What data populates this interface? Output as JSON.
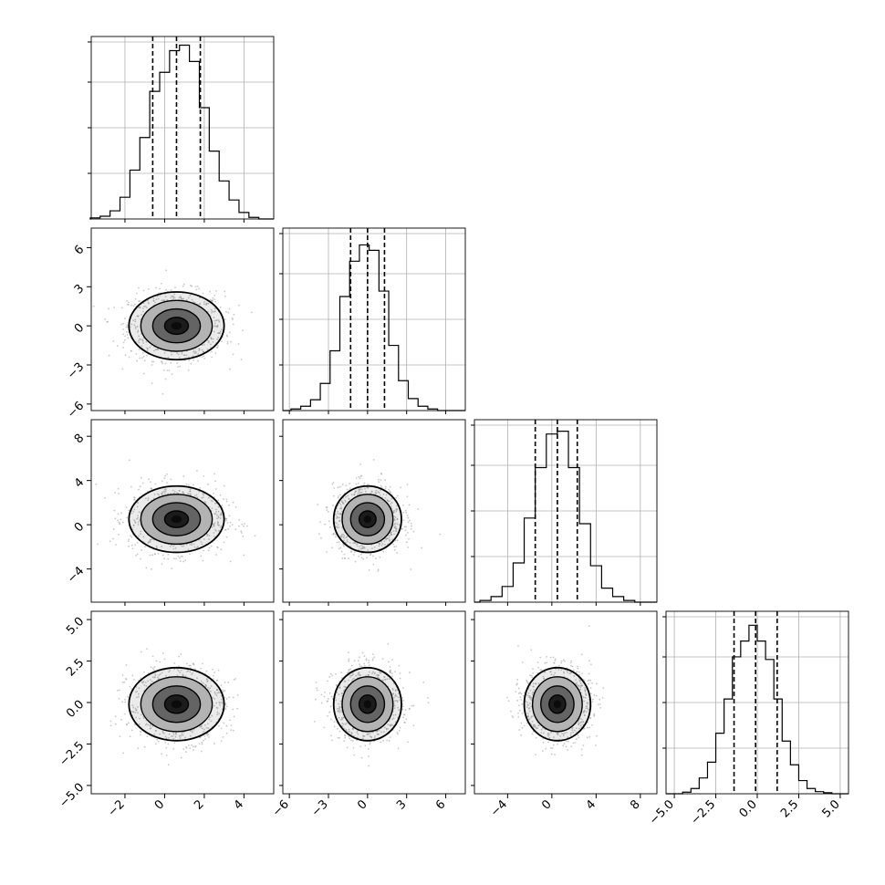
{
  "chart_data": {
    "type": "corner",
    "n_params": 4,
    "grid": true,
    "colors": {
      "line": "#000000",
      "grid": "#b0b0b0",
      "scatter_points": "#9a9a9a",
      "density_fill": "#000000"
    },
    "params": [
      {
        "range": [
          -3.7,
          5.5
        ],
        "ticks": [
          -2,
          0,
          2,
          4
        ],
        "tick_labels": [
          "−2",
          "0",
          "2",
          "4"
        ],
        "quantiles": [
          -0.6,
          0.6,
          1.8
        ],
        "hist_max_count": 320,
        "hist_bins": [
          {
            "x": -3.5,
            "count": 2
          },
          {
            "x": -3.0,
            "count": 5
          },
          {
            "x": -2.5,
            "count": 15
          },
          {
            "x": -2.0,
            "count": 40
          },
          {
            "x": -1.5,
            "count": 90
          },
          {
            "x": -1.0,
            "count": 150
          },
          {
            "x": -0.5,
            "count": 235
          },
          {
            "x": 0.0,
            "count": 270
          },
          {
            "x": 0.5,
            "count": 310
          },
          {
            "x": 1.0,
            "count": 320
          },
          {
            "x": 1.5,
            "count": 290
          },
          {
            "x": 2.0,
            "count": 205
          },
          {
            "x": 2.5,
            "count": 125
          },
          {
            "x": 3.0,
            "count": 70
          },
          {
            "x": 3.5,
            "count": 35
          },
          {
            "x": 4.0,
            "count": 12
          },
          {
            "x": 4.5,
            "count": 3
          }
        ]
      },
      {
        "range": [
          -6.5,
          7.5
        ],
        "ticks": [
          -6,
          -3,
          0,
          3,
          6
        ],
        "tick_labels": [
          "−6",
          "−3",
          "0",
          "3",
          "6"
        ],
        "quantiles": [
          -1.3,
          0.0,
          1.3
        ],
        "hist_max_count": 320,
        "hist_bins": [
          {
            "x": -5.5,
            "count": 3
          },
          {
            "x": -4.75,
            "count": 8
          },
          {
            "x": -4.0,
            "count": 20
          },
          {
            "x": -3.25,
            "count": 50
          },
          {
            "x": -2.5,
            "count": 110
          },
          {
            "x": -1.75,
            "count": 210
          },
          {
            "x": -1.0,
            "count": 275
          },
          {
            "x": -0.25,
            "count": 305
          },
          {
            "x": 0.5,
            "count": 295
          },
          {
            "x": 1.25,
            "count": 220
          },
          {
            "x": 2.0,
            "count": 120
          },
          {
            "x": 2.75,
            "count": 55
          },
          {
            "x": 3.5,
            "count": 22
          },
          {
            "x": 4.25,
            "count": 8
          },
          {
            "x": 5.0,
            "count": 3
          }
        ]
      },
      {
        "range": [
          -7.0,
          9.5
        ],
        "ticks": [
          -4,
          0,
          4,
          8
        ],
        "tick_labels": [
          "−4",
          "0",
          "4",
          "8"
        ],
        "quantiles": [
          -1.5,
          0.5,
          2.3
        ],
        "hist_max_count": 310,
        "hist_bins": [
          {
            "x": -6.0,
            "count": 3
          },
          {
            "x": -5.0,
            "count": 10
          },
          {
            "x": -4.0,
            "count": 28
          },
          {
            "x": -3.0,
            "count": 70
          },
          {
            "x": -2.0,
            "count": 150
          },
          {
            "x": -1.0,
            "count": 240
          },
          {
            "x": 0.0,
            "count": 300
          },
          {
            "x": 1.0,
            "count": 305
          },
          {
            "x": 2.0,
            "count": 240
          },
          {
            "x": 3.0,
            "count": 140
          },
          {
            "x": 4.0,
            "count": 65
          },
          {
            "x": 5.0,
            "count": 25
          },
          {
            "x": 6.0,
            "count": 10
          },
          {
            "x": 7.0,
            "count": 3
          }
        ]
      },
      {
        "range": [
          -5.5,
          5.5
        ],
        "ticks": [
          -5.0,
          -2.5,
          0.0,
          2.5,
          5.0
        ],
        "tick_labels": [
          "−5.0",
          "−2.5",
          "0.0",
          "2.5",
          "5.0"
        ],
        "quantiles": [
          -1.4,
          -0.1,
          1.2
        ],
        "hist_max_count": 330,
        "hist_bins": [
          {
            "x": -4.25,
            "count": 3
          },
          {
            "x": -3.75,
            "count": 10
          },
          {
            "x": -3.25,
            "count": 30
          },
          {
            "x": -2.75,
            "count": 60
          },
          {
            "x": -2.25,
            "count": 115
          },
          {
            "x": -1.75,
            "count": 180
          },
          {
            "x": -1.25,
            "count": 260
          },
          {
            "x": -0.75,
            "count": 290
          },
          {
            "x": -0.25,
            "count": 320
          },
          {
            "x": 0.25,
            "count": 290
          },
          {
            "x": 0.75,
            "count": 255
          },
          {
            "x": 1.25,
            "count": 180
          },
          {
            "x": 1.75,
            "count": 100
          },
          {
            "x": 2.25,
            "count": 55
          },
          {
            "x": 2.75,
            "count": 25
          },
          {
            "x": 3.25,
            "count": 10
          },
          {
            "x": 3.75,
            "count": 4
          },
          {
            "x": 4.25,
            "count": 2
          }
        ]
      }
    ],
    "pairs": [
      {
        "row": 1,
        "col": 0,
        "mean": [
          0.6,
          0.0
        ],
        "std": [
          1.2,
          1.3
        ]
      },
      {
        "row": 2,
        "col": 0,
        "mean": [
          0.6,
          0.5
        ],
        "std": [
          1.2,
          1.5
        ]
      },
      {
        "row": 2,
        "col": 1,
        "mean": [
          0.0,
          0.5
        ],
        "std": [
          1.3,
          1.5
        ]
      },
      {
        "row": 3,
        "col": 0,
        "mean": [
          0.6,
          -0.1
        ],
        "std": [
          1.2,
          1.1
        ]
      },
      {
        "row": 3,
        "col": 1,
        "mean": [
          0.0,
          -0.1
        ],
        "std": [
          1.3,
          1.1
        ]
      },
      {
        "row": 3,
        "col": 2,
        "mean": [
          0.5,
          -0.1
        ],
        "std": [
          1.5,
          1.1
        ]
      }
    ],
    "contour_levels_sigma": [
      0.5,
      1.0,
      1.5,
      2.0
    ]
  }
}
